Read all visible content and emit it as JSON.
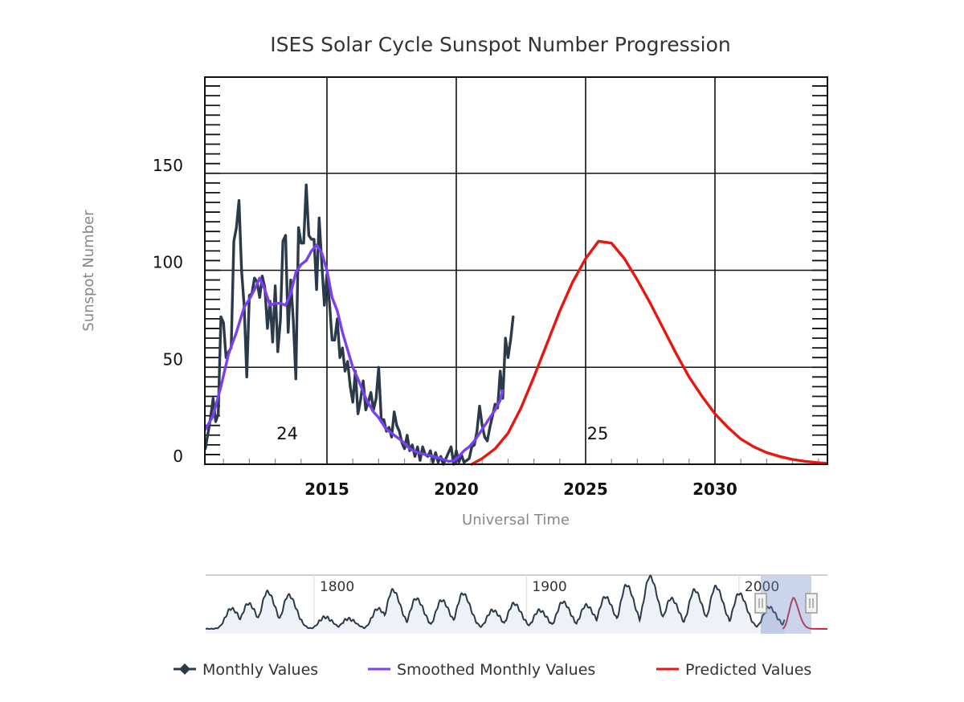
{
  "chart_data": {
    "type": "line",
    "title": "ISES Solar Cycle Sunspot Number Progression",
    "xlabel": "Universal Time",
    "ylabel": "Sunspot Number",
    "xlim": [
      2010.3,
      2034.3
    ],
    "ylim": [
      0,
      200
    ],
    "x_ticks": [
      "2015",
      "2020",
      "2025",
      "2030"
    ],
    "x_tick_values": [
      2015,
      2020,
      2025,
      2030
    ],
    "y_ticks": [
      "0",
      "50",
      "100",
      "150"
    ],
    "y_tick_values": [
      0,
      50,
      100,
      150
    ],
    "grid": true,
    "legend_position": "bottom",
    "annotations": [
      {
        "text": "24",
        "x": 2013.0,
        "y": 15
      },
      {
        "text": "25",
        "x": 2025.0,
        "y": 15
      }
    ],
    "series": [
      {
        "name": "Monthly Values",
        "color": "#2b3a4a",
        "x": [
          2010.3,
          2010.4,
          2010.5,
          2010.6,
          2010.7,
          2010.8,
          2010.9,
          2011.0,
          2011.1,
          2011.2,
          2011.3,
          2011.4,
          2011.5,
          2011.6,
          2011.7,
          2011.8,
          2011.9,
          2012.0,
          2012.1,
          2012.2,
          2012.3,
          2012.4,
          2012.5,
          2012.6,
          2012.7,
          2012.8,
          2012.9,
          2013.0,
          2013.1,
          2013.2,
          2013.3,
          2013.4,
          2013.5,
          2013.6,
          2013.7,
          2013.8,
          2013.9,
          2014.0,
          2014.1,
          2014.2,
          2014.3,
          2014.4,
          2014.5,
          2014.6,
          2014.7,
          2014.8,
          2014.9,
          2015.0,
          2015.1,
          2015.2,
          2015.3,
          2015.4,
          2015.5,
          2015.6,
          2015.7,
          2015.8,
          2015.9,
          2016.0,
          2016.1,
          2016.2,
          2016.3,
          2016.4,
          2016.5,
          2016.6,
          2016.7,
          2016.8,
          2016.9,
          2017.0,
          2017.1,
          2017.2,
          2017.3,
          2017.4,
          2017.5,
          2017.6,
          2017.7,
          2017.8,
          2017.9,
          2018.0,
          2018.1,
          2018.2,
          2018.3,
          2018.4,
          2018.5,
          2018.6,
          2018.7,
          2018.8,
          2018.9,
          2019.0,
          2019.1,
          2019.2,
          2019.3,
          2019.4,
          2019.5,
          2019.6,
          2019.7,
          2019.8,
          2019.9,
          2020.0,
          2020.1,
          2020.2,
          2020.3,
          2020.4,
          2020.5,
          2020.6,
          2020.7,
          2020.8,
          2020.9,
          2021.0,
          2021.1,
          2021.2,
          2021.3,
          2021.4,
          2021.5,
          2021.6,
          2021.7,
          2021.8,
          2021.9,
          2022.0,
          2022.1,
          2022.2
        ],
        "y": [
          8,
          16,
          24,
          34,
          22,
          26,
          76,
          73,
          55,
          58,
          60,
          115,
          122,
          136,
          100,
          82,
          45,
          87,
          88,
          96,
          94,
          86,
          97,
          91,
          70,
          84,
          63,
          92,
          58,
          74,
          115,
          118,
          68,
          95,
          74,
          44,
          122,
          114,
          114,
          144,
          118,
          116,
          116,
          90,
          127,
          104,
          82,
          98,
          83,
          64,
          64,
          75,
          55,
          60,
          48,
          53,
          40,
          32,
          48,
          26,
          33,
          43,
          28,
          32,
          37,
          28,
          34,
          50,
          23,
          23,
          17,
          19,
          14,
          27,
          20,
          17,
          11,
          8,
          15,
          7,
          10,
          4,
          9,
          2,
          9,
          5,
          4,
          7,
          1,
          6,
          1,
          4,
          0,
          3,
          6,
          9,
          0,
          7,
          1,
          5,
          1,
          2,
          3,
          9,
          10,
          17,
          30,
          20,
          14,
          12,
          19,
          25,
          31,
          29,
          48,
          34,
          65,
          55,
          64,
          76
        ]
      },
      {
        "name": "Smoothed Monthly Values",
        "color": "#7b3ff2",
        "x": [
          2010.3,
          2010.6,
          2010.9,
          2011.2,
          2011.5,
          2011.8,
          2012.0,
          2012.2,
          2012.4,
          2012.6,
          2012.8,
          2013.0,
          2013.2,
          2013.4,
          2013.6,
          2013.8,
          2014.0,
          2014.2,
          2014.4,
          2014.6,
          2014.8,
          2015.0,
          2015.2,
          2015.4,
          2015.6,
          2015.8,
          2016.0,
          2016.2,
          2016.5,
          2016.8,
          2017.0,
          2017.3,
          2017.6,
          2017.9,
          2018.2,
          2018.5,
          2018.8,
          2019.1,
          2019.4,
          2019.7,
          2019.9,
          2020.1,
          2020.3,
          2020.5,
          2020.7,
          2020.9,
          2021.1,
          2021.3,
          2021.5,
          2021.7,
          2021.8
        ],
        "y": [
          18,
          25,
          40,
          57,
          68,
          81,
          85,
          90,
          96,
          90,
          82,
          83,
          83,
          82,
          88,
          99,
          103,
          105,
          110,
          113,
          109,
          100,
          86,
          79,
          68,
          59,
          50,
          44,
          34,
          27,
          24,
          18,
          15,
          12,
          8,
          6,
          5,
          4,
          3,
          1.5,
          1.8,
          4,
          7,
          9,
          12,
          16,
          20,
          24,
          28,
          33,
          38
        ]
      },
      {
        "name": "Predicted Values",
        "color": "#e8160f",
        "x": [
          2020.6,
          2021.0,
          2021.5,
          2022.0,
          2022.5,
          2023.0,
          2023.5,
          2024.0,
          2024.5,
          2025.0,
          2025.5,
          2026.0,
          2026.5,
          2027.0,
          2027.5,
          2028.0,
          2028.5,
          2029.0,
          2029.5,
          2030.0,
          2030.5,
          2031.0,
          2031.5,
          2032.0,
          2032.5,
          2033.0,
          2033.5,
          2034.0,
          2034.3
        ],
        "y": [
          0,
          3,
          8,
          16,
          29,
          45,
          62,
          79,
          94,
          106,
          115,
          114,
          106,
          95,
          83,
          70,
          57,
          45,
          35,
          26,
          19,
          13,
          9,
          6,
          4,
          2.5,
          1.5,
          0.8,
          0.5
        ]
      }
    ],
    "navigator": {
      "tick_labels": [
        "1800",
        "1900",
        "2000"
      ],
      "tick_values": [
        1800,
        1900,
        2000
      ],
      "range": [
        1749,
        2034
      ],
      "selected_range": [
        2010.3,
        2034.3
      ],
      "series": [
        {
          "name": "Monthly Values",
          "color": "#2b3a4a"
        },
        {
          "name": "Predicted Values",
          "color": "#d0243b"
        }
      ],
      "cycle_maxima_years": [
        1761,
        1769,
        1778,
        1788,
        1805,
        1816,
        1830,
        1837,
        1848,
        1860,
        1870,
        1884,
        1894,
        1906,
        1917,
        1928,
        1937,
        1947,
        1958,
        1968,
        1979,
        1989,
        2000,
        2014,
        2025
      ],
      "cycle_maxima_values": [
        60,
        75,
        110,
        100,
        35,
        30,
        60,
        115,
        90,
        85,
        105,
        55,
        75,
        55,
        80,
        70,
        95,
        130,
        155,
        90,
        115,
        125,
        105,
        65,
        60
      ]
    },
    "legend": [
      {
        "label": "Monthly Values",
        "icon": "diamond-line-icon",
        "color": "#2b3a4a"
      },
      {
        "label": "Smoothed Monthly Values",
        "icon": "line-icon",
        "color": "#7b3ff2"
      },
      {
        "label": "Predicted Values",
        "icon": "line-icon",
        "color": "#e8160f"
      }
    ]
  }
}
